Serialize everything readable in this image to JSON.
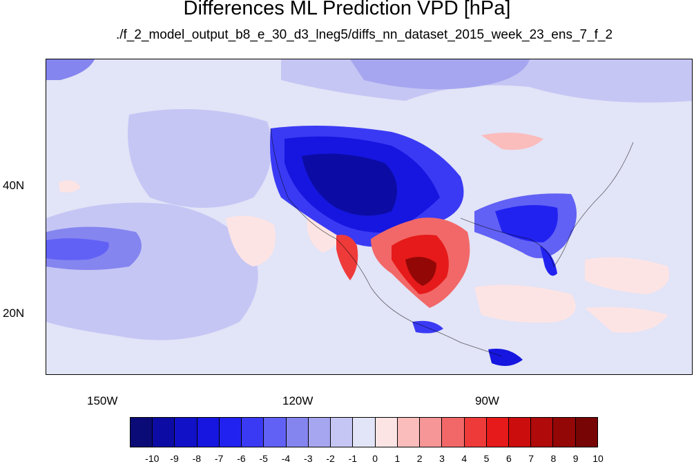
{
  "title": "Differences ML Prediction VPD [hPa]",
  "subtitle": "./f_2_model_output_b8_e_30_d3_lneg5/diffs_nn_dataset_2015_week_23_ens_7_f_2",
  "axes": {
    "y_ticks": [
      "40N",
      "20N"
    ],
    "x_ticks": [
      "150W",
      "120W",
      "90W"
    ]
  },
  "colorbar": {
    "labels": [
      "-10",
      "-9",
      "-8",
      "-7",
      "-6",
      "-5",
      "-4",
      "-3",
      "-2",
      "-1",
      "0",
      "1",
      "2",
      "3",
      "4",
      "5",
      "6",
      "7",
      "8",
      "9",
      "10"
    ],
    "colors": [
      "#0b0b78",
      "#0c0ca5",
      "#1111c8",
      "#1616e0",
      "#2222f0",
      "#3a3af5",
      "#6161f5",
      "#8585f0",
      "#a6a6f0",
      "#c6c6f5",
      "#e2e4f7",
      "#fde4e4",
      "#fbbcbc",
      "#f79696",
      "#f26868",
      "#ef3a3a",
      "#e61a1a",
      "#cc0d0d",
      "#b00a0a",
      "#940707",
      "#780505"
    ]
  }
}
